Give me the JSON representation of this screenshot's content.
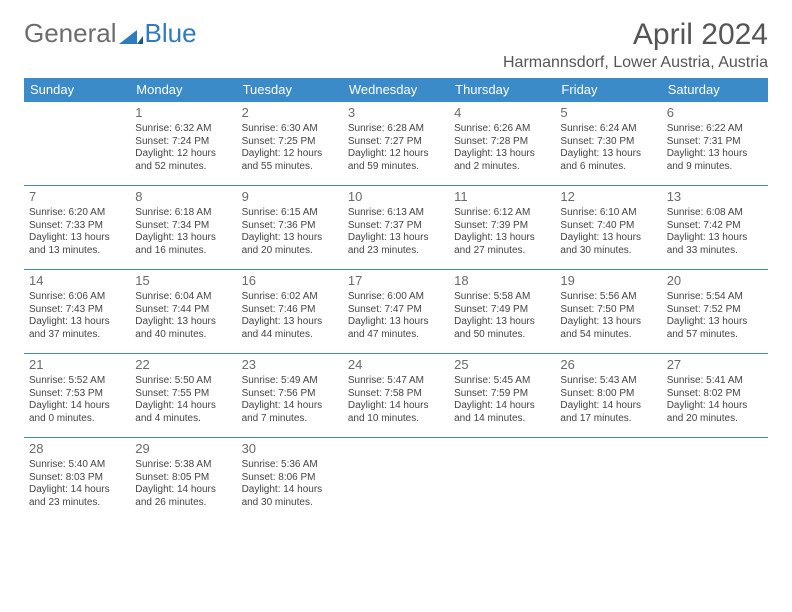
{
  "logo": {
    "text_general": "General",
    "text_blue": "Blue"
  },
  "title": "April 2024",
  "location": "Harmannsdorf, Lower Austria, Austria",
  "colors": {
    "header_bg": "#3b8bc8",
    "header_text": "#ffffff",
    "border": "#3b8bc8",
    "body_text": "#444444",
    "title_text": "#555555",
    "logo_gray": "#6d6d6d",
    "logo_blue": "#2f7bbf"
  },
  "day_headers": [
    "Sunday",
    "Monday",
    "Tuesday",
    "Wednesday",
    "Thursday",
    "Friday",
    "Saturday"
  ],
  "weeks": [
    [
      null,
      {
        "n": "1",
        "sr": "Sunrise: 6:32 AM",
        "ss": "Sunset: 7:24 PM",
        "d1": "Daylight: 12 hours",
        "d2": "and 52 minutes."
      },
      {
        "n": "2",
        "sr": "Sunrise: 6:30 AM",
        "ss": "Sunset: 7:25 PM",
        "d1": "Daylight: 12 hours",
        "d2": "and 55 minutes."
      },
      {
        "n": "3",
        "sr": "Sunrise: 6:28 AM",
        "ss": "Sunset: 7:27 PM",
        "d1": "Daylight: 12 hours",
        "d2": "and 59 minutes."
      },
      {
        "n": "4",
        "sr": "Sunrise: 6:26 AM",
        "ss": "Sunset: 7:28 PM",
        "d1": "Daylight: 13 hours",
        "d2": "and 2 minutes."
      },
      {
        "n": "5",
        "sr": "Sunrise: 6:24 AM",
        "ss": "Sunset: 7:30 PM",
        "d1": "Daylight: 13 hours",
        "d2": "and 6 minutes."
      },
      {
        "n": "6",
        "sr": "Sunrise: 6:22 AM",
        "ss": "Sunset: 7:31 PM",
        "d1": "Daylight: 13 hours",
        "d2": "and 9 minutes."
      }
    ],
    [
      {
        "n": "7",
        "sr": "Sunrise: 6:20 AM",
        "ss": "Sunset: 7:33 PM",
        "d1": "Daylight: 13 hours",
        "d2": "and 13 minutes."
      },
      {
        "n": "8",
        "sr": "Sunrise: 6:18 AM",
        "ss": "Sunset: 7:34 PM",
        "d1": "Daylight: 13 hours",
        "d2": "and 16 minutes."
      },
      {
        "n": "9",
        "sr": "Sunrise: 6:15 AM",
        "ss": "Sunset: 7:36 PM",
        "d1": "Daylight: 13 hours",
        "d2": "and 20 minutes."
      },
      {
        "n": "10",
        "sr": "Sunrise: 6:13 AM",
        "ss": "Sunset: 7:37 PM",
        "d1": "Daylight: 13 hours",
        "d2": "and 23 minutes."
      },
      {
        "n": "11",
        "sr": "Sunrise: 6:12 AM",
        "ss": "Sunset: 7:39 PM",
        "d1": "Daylight: 13 hours",
        "d2": "and 27 minutes."
      },
      {
        "n": "12",
        "sr": "Sunrise: 6:10 AM",
        "ss": "Sunset: 7:40 PM",
        "d1": "Daylight: 13 hours",
        "d2": "and 30 minutes."
      },
      {
        "n": "13",
        "sr": "Sunrise: 6:08 AM",
        "ss": "Sunset: 7:42 PM",
        "d1": "Daylight: 13 hours",
        "d2": "and 33 minutes."
      }
    ],
    [
      {
        "n": "14",
        "sr": "Sunrise: 6:06 AM",
        "ss": "Sunset: 7:43 PM",
        "d1": "Daylight: 13 hours",
        "d2": "and 37 minutes."
      },
      {
        "n": "15",
        "sr": "Sunrise: 6:04 AM",
        "ss": "Sunset: 7:44 PM",
        "d1": "Daylight: 13 hours",
        "d2": "and 40 minutes."
      },
      {
        "n": "16",
        "sr": "Sunrise: 6:02 AM",
        "ss": "Sunset: 7:46 PM",
        "d1": "Daylight: 13 hours",
        "d2": "and 44 minutes."
      },
      {
        "n": "17",
        "sr": "Sunrise: 6:00 AM",
        "ss": "Sunset: 7:47 PM",
        "d1": "Daylight: 13 hours",
        "d2": "and 47 minutes."
      },
      {
        "n": "18",
        "sr": "Sunrise: 5:58 AM",
        "ss": "Sunset: 7:49 PM",
        "d1": "Daylight: 13 hours",
        "d2": "and 50 minutes."
      },
      {
        "n": "19",
        "sr": "Sunrise: 5:56 AM",
        "ss": "Sunset: 7:50 PM",
        "d1": "Daylight: 13 hours",
        "d2": "and 54 minutes."
      },
      {
        "n": "20",
        "sr": "Sunrise: 5:54 AM",
        "ss": "Sunset: 7:52 PM",
        "d1": "Daylight: 13 hours",
        "d2": "and 57 minutes."
      }
    ],
    [
      {
        "n": "21",
        "sr": "Sunrise: 5:52 AM",
        "ss": "Sunset: 7:53 PM",
        "d1": "Daylight: 14 hours",
        "d2": "and 0 minutes."
      },
      {
        "n": "22",
        "sr": "Sunrise: 5:50 AM",
        "ss": "Sunset: 7:55 PM",
        "d1": "Daylight: 14 hours",
        "d2": "and 4 minutes."
      },
      {
        "n": "23",
        "sr": "Sunrise: 5:49 AM",
        "ss": "Sunset: 7:56 PM",
        "d1": "Daylight: 14 hours",
        "d2": "and 7 minutes."
      },
      {
        "n": "24",
        "sr": "Sunrise: 5:47 AM",
        "ss": "Sunset: 7:58 PM",
        "d1": "Daylight: 14 hours",
        "d2": "and 10 minutes."
      },
      {
        "n": "25",
        "sr": "Sunrise: 5:45 AM",
        "ss": "Sunset: 7:59 PM",
        "d1": "Daylight: 14 hours",
        "d2": "and 14 minutes."
      },
      {
        "n": "26",
        "sr": "Sunrise: 5:43 AM",
        "ss": "Sunset: 8:00 PM",
        "d1": "Daylight: 14 hours",
        "d2": "and 17 minutes."
      },
      {
        "n": "27",
        "sr": "Sunrise: 5:41 AM",
        "ss": "Sunset: 8:02 PM",
        "d1": "Daylight: 14 hours",
        "d2": "and 20 minutes."
      }
    ],
    [
      {
        "n": "28",
        "sr": "Sunrise: 5:40 AM",
        "ss": "Sunset: 8:03 PM",
        "d1": "Daylight: 14 hours",
        "d2": "and 23 minutes."
      },
      {
        "n": "29",
        "sr": "Sunrise: 5:38 AM",
        "ss": "Sunset: 8:05 PM",
        "d1": "Daylight: 14 hours",
        "d2": "and 26 minutes."
      },
      {
        "n": "30",
        "sr": "Sunrise: 5:36 AM",
        "ss": "Sunset: 8:06 PM",
        "d1": "Daylight: 14 hours",
        "d2": "and 30 minutes."
      },
      null,
      null,
      null,
      null
    ]
  ]
}
